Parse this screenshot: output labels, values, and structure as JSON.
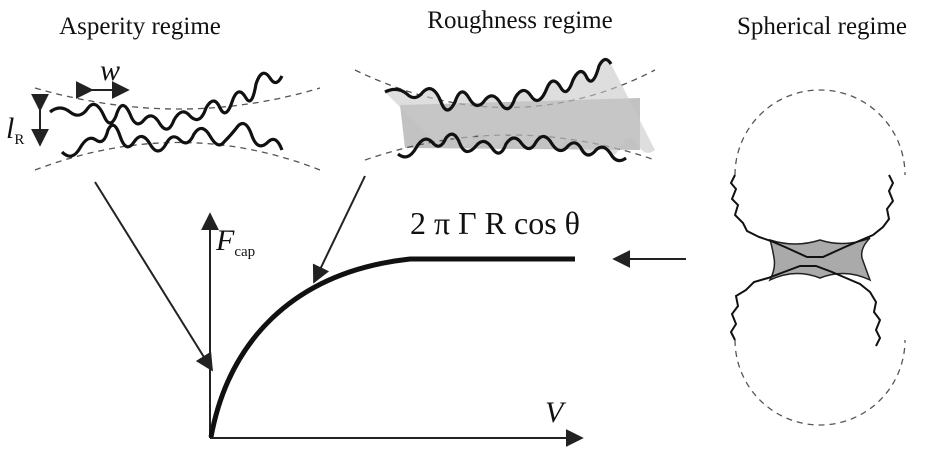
{
  "panels": [
    {
      "label": "Asperity regime"
    },
    {
      "label": "Roughness regime"
    },
    {
      "label": "Spherical regime"
    }
  ],
  "annotations": {
    "width_symbol": "w",
    "height_symbol": "l",
    "height_subscript": "R",
    "force_symbol": "F",
    "force_subscript": "cap",
    "plateau_formula": "2 π Γ R cos θ",
    "volume_symbol": "V"
  }
}
